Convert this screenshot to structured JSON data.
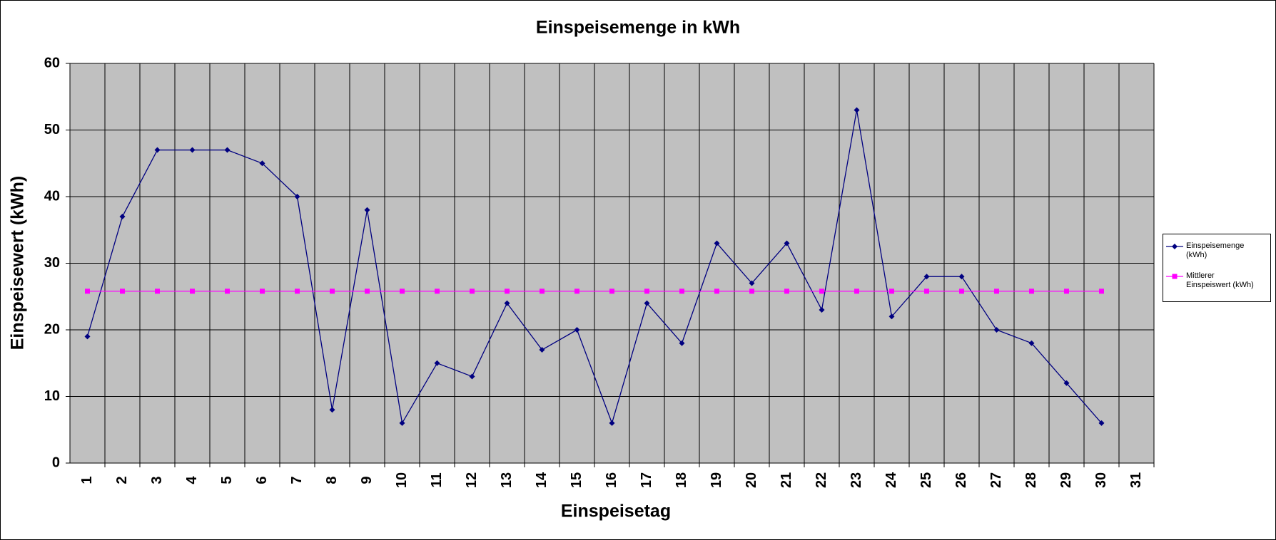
{
  "chart_data": {
    "type": "line",
    "title": "Einspeisemenge in kWh",
    "x_label": "Einspeisetag",
    "y_label": "Einspeisewert  (kWh)",
    "categories": [
      "1",
      "2",
      "3",
      "4",
      "5",
      "6",
      "7",
      "8",
      "9",
      "10",
      "11",
      "12",
      "13",
      "14",
      "15",
      "16",
      "17",
      "18",
      "19",
      "20",
      "21",
      "22",
      "23",
      "24",
      "25",
      "26",
      "27",
      "28",
      "29",
      "30",
      "31"
    ],
    "series": [
      {
        "name": "Einspeisemenge (kWh)",
        "color": "#000080",
        "marker": "diamond",
        "values": [
          19,
          37,
          47,
          47,
          47,
          45,
          40,
          8,
          38,
          6,
          15,
          13,
          24,
          17,
          20,
          6,
          24,
          18,
          33,
          27,
          33,
          23,
          53,
          22,
          28,
          28,
          20,
          18,
          12,
          6,
          null
        ]
      },
      {
        "name": "Mittlerer Einspeiswert (kWh)",
        "color": "#ff00ff",
        "marker": "square",
        "values": [
          25.8,
          25.8,
          25.8,
          25.8,
          25.8,
          25.8,
          25.8,
          25.8,
          25.8,
          25.8,
          25.8,
          25.8,
          25.8,
          25.8,
          25.8,
          25.8,
          25.8,
          25.8,
          25.8,
          25.8,
          25.8,
          25.8,
          25.8,
          25.8,
          25.8,
          25.8,
          25.8,
          25.8,
          25.8,
          25.8,
          null
        ]
      }
    ],
    "ylim": [
      0,
      60
    ],
    "yticks": [
      0,
      10,
      20,
      30,
      40,
      50,
      60
    ],
    "grid": true,
    "legend": "right"
  }
}
